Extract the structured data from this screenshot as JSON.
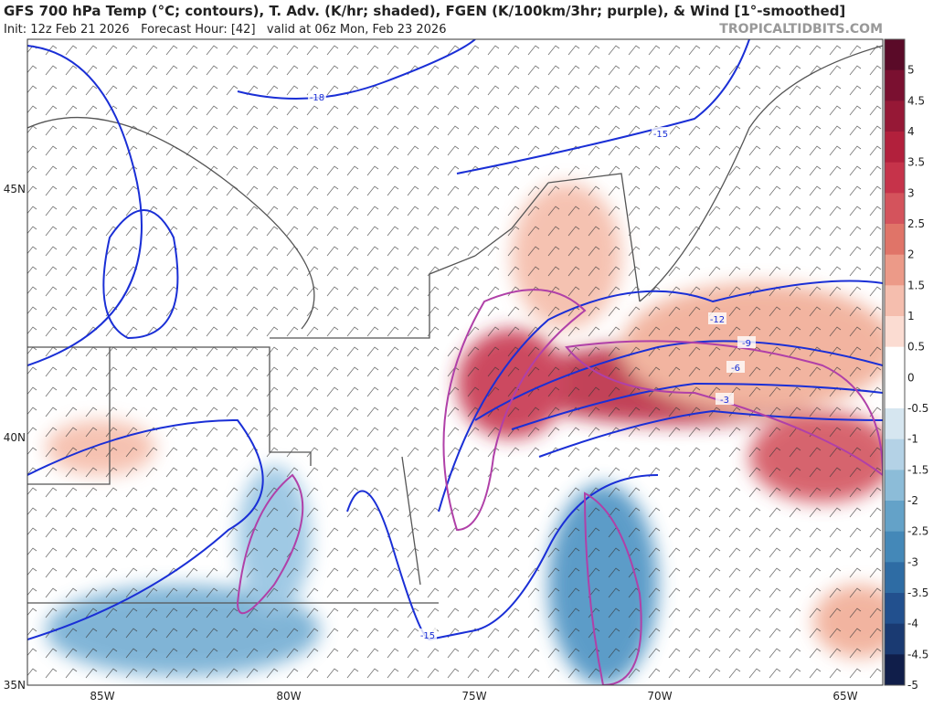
{
  "header": {
    "title": "GFS 700 hPa Temp (°C; contours), T. Adv. (K/hr; shaded), FGEN (K/100km/3hr; purple), & Wind [1°-smoothed]",
    "subtitle": "Init: 12z Feb 21 2026   Forecast Hour: [42]   valid at 06z Mon, Feb 23 2026",
    "watermark": "TROPICALTIDBITS.COM"
  },
  "map": {
    "lat_labels": [
      "45N",
      "40N",
      "35N"
    ],
    "lon_labels": [
      "85W",
      "80W",
      "75W",
      "70W",
      "65W"
    ],
    "contour_labels": [
      "-18",
      "-15",
      "-12",
      "-9",
      "-6",
      "-3",
      "-15"
    ]
  },
  "colorbar": {
    "labels": [
      "5",
      "4.5",
      "4",
      "3.5",
      "3",
      "2.5",
      "2",
      "1.5",
      "1",
      "0.5",
      "0",
      "-0.5",
      "-1",
      "-1.5",
      "-2",
      "-2.5",
      "-3",
      "-3.5",
      "-4",
      "-4.5",
      "-5"
    ]
  }
}
